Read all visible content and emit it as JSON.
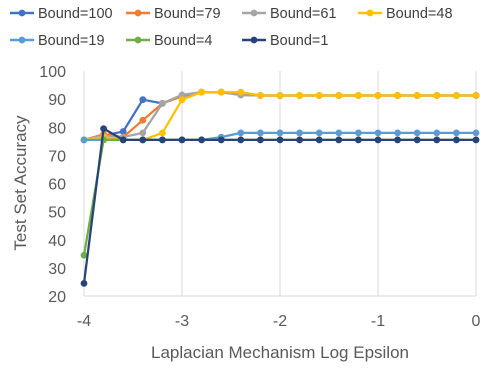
{
  "chart_data": {
    "type": "line",
    "title": "",
    "xlabel": "Laplacian Mechanism Log Epsilon",
    "ylabel": "Test Set Accuracy",
    "xlim": [
      -4,
      0
    ],
    "ylim": [
      20,
      100
    ],
    "xticks": [
      -4,
      -3,
      -2,
      -1,
      0
    ],
    "xtick_labels": [
      "-4",
      "-3",
      "-2",
      "-1",
      "0"
    ],
    "yticks": [
      20,
      30,
      40,
      50,
      60,
      70,
      80,
      90,
      100
    ],
    "ytick_labels": [
      "20",
      "30",
      "40",
      "50",
      "60",
      "70",
      "80",
      "90",
      "100"
    ],
    "grid": "vertical",
    "legend_position": "top",
    "x": [
      -4.0,
      -3.8,
      -3.6,
      -3.4,
      -3.2,
      -3.0,
      -2.8,
      -2.6,
      -2.4,
      -2.2,
      -2.0,
      -1.8,
      -1.6,
      -1.4,
      -1.2,
      -1.0,
      -0.8,
      -0.6,
      -0.4,
      -0.2,
      0.0
    ],
    "series": [
      {
        "name": "Bound=100",
        "color": "#4472c4",
        "values": [
          75.5,
          77.0,
          78.5,
          89.8,
          88.5,
          91.0,
          92.5,
          92.5,
          91.5,
          91.3,
          91.3,
          91.3,
          91.3,
          91.3,
          91.3,
          91.3,
          91.3,
          91.3,
          91.3,
          91.3,
          91.3
        ]
      },
      {
        "name": "Bound=79",
        "color": "#ed7d31",
        "values": [
          75.5,
          77.5,
          76.5,
          82.5,
          88.5,
          91.0,
          92.5,
          92.5,
          91.5,
          91.3,
          91.3,
          91.3,
          91.3,
          91.3,
          91.3,
          91.3,
          91.3,
          91.3,
          91.3,
          91.3,
          91.3
        ]
      },
      {
        "name": "Bound=61",
        "color": "#a5a5a5",
        "values": [
          75.5,
          77.0,
          76.5,
          78.0,
          88.5,
          91.5,
          92.5,
          92.5,
          91.5,
          91.3,
          91.3,
          91.3,
          91.3,
          91.3,
          91.3,
          91.3,
          91.3,
          91.3,
          91.3,
          91.3,
          91.3
        ]
      },
      {
        "name": "Bound=48",
        "color": "#ffc000",
        "values": [
          75.5,
          76.5,
          75.5,
          75.5,
          78.0,
          89.8,
          92.5,
          92.5,
          92.5,
          91.3,
          91.3,
          91.3,
          91.3,
          91.3,
          91.3,
          91.3,
          91.3,
          91.3,
          91.3,
          91.3,
          91.3
        ]
      },
      {
        "name": "Bound=19",
        "color": "#5b9bd5",
        "values": [
          75.5,
          75.5,
          75.5,
          75.5,
          75.5,
          75.5,
          75.5,
          76.5,
          78.0,
          78.0,
          78.0,
          78.0,
          78.0,
          78.0,
          78.0,
          78.0,
          78.0,
          78.0,
          78.0,
          78.0,
          78.0
        ]
      },
      {
        "name": "Bound=4",
        "color": "#70ad47",
        "values": [
          34.5,
          75.5,
          75.5,
          75.5,
          75.5,
          75.5,
          75.5,
          75.5,
          75.5,
          75.5,
          75.5,
          75.5,
          75.5,
          75.5,
          75.5,
          75.5,
          75.5,
          75.5,
          75.5,
          75.5,
          75.5
        ]
      },
      {
        "name": "Bound=1",
        "color": "#264478",
        "values": [
          24.5,
          79.5,
          75.5,
          75.5,
          75.5,
          75.5,
          75.5,
          75.5,
          75.5,
          75.5,
          75.5,
          75.5,
          75.5,
          75.5,
          75.5,
          75.5,
          75.5,
          75.5,
          75.5,
          75.5,
          75.5
        ]
      }
    ]
  }
}
